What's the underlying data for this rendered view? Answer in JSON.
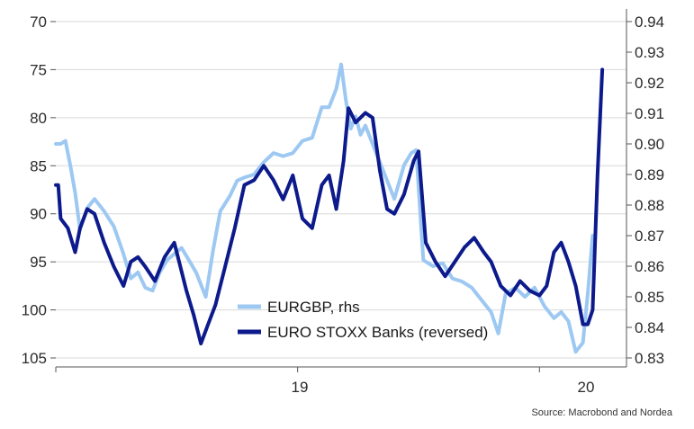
{
  "chart_data": {
    "type": "line",
    "left_axis": {
      "ticks": [
        70,
        75,
        80,
        85,
        90,
        95,
        100,
        105
      ],
      "range": [
        70,
        105
      ],
      "reversed": true
    },
    "right_axis": {
      "ticks": [
        0.94,
        0.93,
        0.92,
        0.91,
        0.9,
        0.89,
        0.88,
        0.87,
        0.86,
        0.85,
        0.84,
        0.83
      ],
      "range": [
        0.83,
        0.94
      ]
    },
    "x_axis": {
      "range": [
        2018.0,
        2020.36
      ],
      "tick_labels": [
        {
          "label": "19",
          "at": 2019.0
        },
        {
          "label": "20",
          "at": 2020.0
        }
      ],
      "boundaries": [
        2018.0,
        2019.0,
        2020.0
      ]
    },
    "grid": "horizontal",
    "legend_position": "bottom-center",
    "colors": {
      "eurgbp": "#9dc8f2",
      "stoxx": "#0d1a8c",
      "grid": "#d9d9d9",
      "axis": "#555555"
    },
    "series": [
      {
        "name": "EURGBP, rhs",
        "axis": "right",
        "x": [
          2018.0,
          2018.02,
          2018.04,
          2018.06,
          2018.08,
          2018.1,
          2018.13,
          2018.16,
          2018.2,
          2018.24,
          2018.28,
          2018.31,
          2018.34,
          2018.37,
          2018.4,
          2018.43,
          2018.46,
          2018.49,
          2018.52,
          2018.55,
          2018.58,
          2018.62,
          2018.65,
          2018.68,
          2018.72,
          2018.75,
          2018.78,
          2018.82,
          2018.86,
          2018.9,
          2018.94,
          2018.98,
          2019.02,
          2019.06,
          2019.1,
          2019.13,
          2019.16,
          2019.18,
          2019.2,
          2019.22,
          2019.24,
          2019.26,
          2019.28,
          2019.32,
          2019.36,
          2019.4,
          2019.44,
          2019.47,
          2019.49,
          2019.52,
          2019.56,
          2019.6,
          2019.64,
          2019.68,
          2019.72,
          2019.76,
          2019.8,
          2019.83,
          2019.86,
          2019.9,
          2019.94,
          2019.98,
          2020.02,
          2020.06,
          2020.09,
          2020.12,
          2020.15,
          2020.18,
          2020.2,
          2020.22
        ],
        "values": [
          0.9,
          0.9,
          0.901,
          0.893,
          0.884,
          0.872,
          0.879,
          0.882,
          0.878,
          0.873,
          0.864,
          0.856,
          0.858,
          0.853,
          0.852,
          0.858,
          0.862,
          0.864,
          0.866,
          0.862,
          0.858,
          0.85,
          0.865,
          0.878,
          0.883,
          0.888,
          0.889,
          0.89,
          0.894,
          0.897,
          0.896,
          0.897,
          0.901,
          0.902,
          0.912,
          0.912,
          0.918,
          0.926,
          0.914,
          0.905,
          0.909,
          0.903,
          0.906,
          0.898,
          0.89,
          0.882,
          0.893,
          0.897,
          0.898,
          0.862,
          0.86,
          0.861,
          0.856,
          0.855,
          0.853,
          0.849,
          0.845,
          0.838,
          0.851,
          0.853,
          0.85,
          0.853,
          0.847,
          0.843,
          0.845,
          0.842,
          0.832,
          0.835,
          0.851,
          0.87
        ]
      },
      {
        "name": "EURO STOXX Banks (reversed)",
        "axis": "left",
        "x": [
          2018.0,
          2018.01,
          2018.02,
          2018.05,
          2018.08,
          2018.1,
          2018.13,
          2018.16,
          2018.2,
          2018.24,
          2018.28,
          2018.31,
          2018.34,
          2018.37,
          2018.41,
          2018.45,
          2018.49,
          2018.52,
          2018.54,
          2018.57,
          2018.6,
          2018.63,
          2018.66,
          2018.7,
          2018.74,
          2018.78,
          2018.82,
          2018.86,
          2018.9,
          2018.94,
          2018.98,
          2019.02,
          2019.06,
          2019.1,
          2019.13,
          2019.16,
          2019.19,
          2019.21,
          2019.24,
          2019.28,
          2019.31,
          2019.34,
          2019.37,
          2019.4,
          2019.44,
          2019.48,
          2019.5,
          2019.53,
          2019.57,
          2019.61,
          2019.65,
          2019.69,
          2019.73,
          2019.77,
          2019.8,
          2019.84,
          2019.88,
          2019.92,
          2019.96,
          2020.0,
          2020.03,
          2020.06,
          2020.09,
          2020.12,
          2020.15,
          2020.18,
          2020.2,
          2020.22,
          2020.24,
          2020.26
        ],
        "values": [
          87,
          87,
          90.5,
          91.5,
          94,
          91.5,
          89.5,
          90,
          93,
          95.5,
          97.5,
          95,
          94.5,
          95.5,
          97,
          94.5,
          93,
          96,
          98,
          100.5,
          103.5,
          101.5,
          99.5,
          95.5,
          91.5,
          87,
          86.5,
          85,
          86.5,
          88.5,
          86,
          90.5,
          91.5,
          87,
          86,
          89.5,
          84.5,
          79,
          80.5,
          79.5,
          80,
          85.5,
          89.5,
          90,
          88,
          84.5,
          83.5,
          93,
          95,
          96.5,
          95,
          93.5,
          92.5,
          94,
          95,
          97.5,
          98.5,
          97,
          98,
          98.5,
          97.5,
          94,
          93,
          95,
          97.5,
          101.5,
          101.5,
          100,
          86,
          75
        ]
      }
    ],
    "source": "Source: Macrobond and Nordea"
  }
}
